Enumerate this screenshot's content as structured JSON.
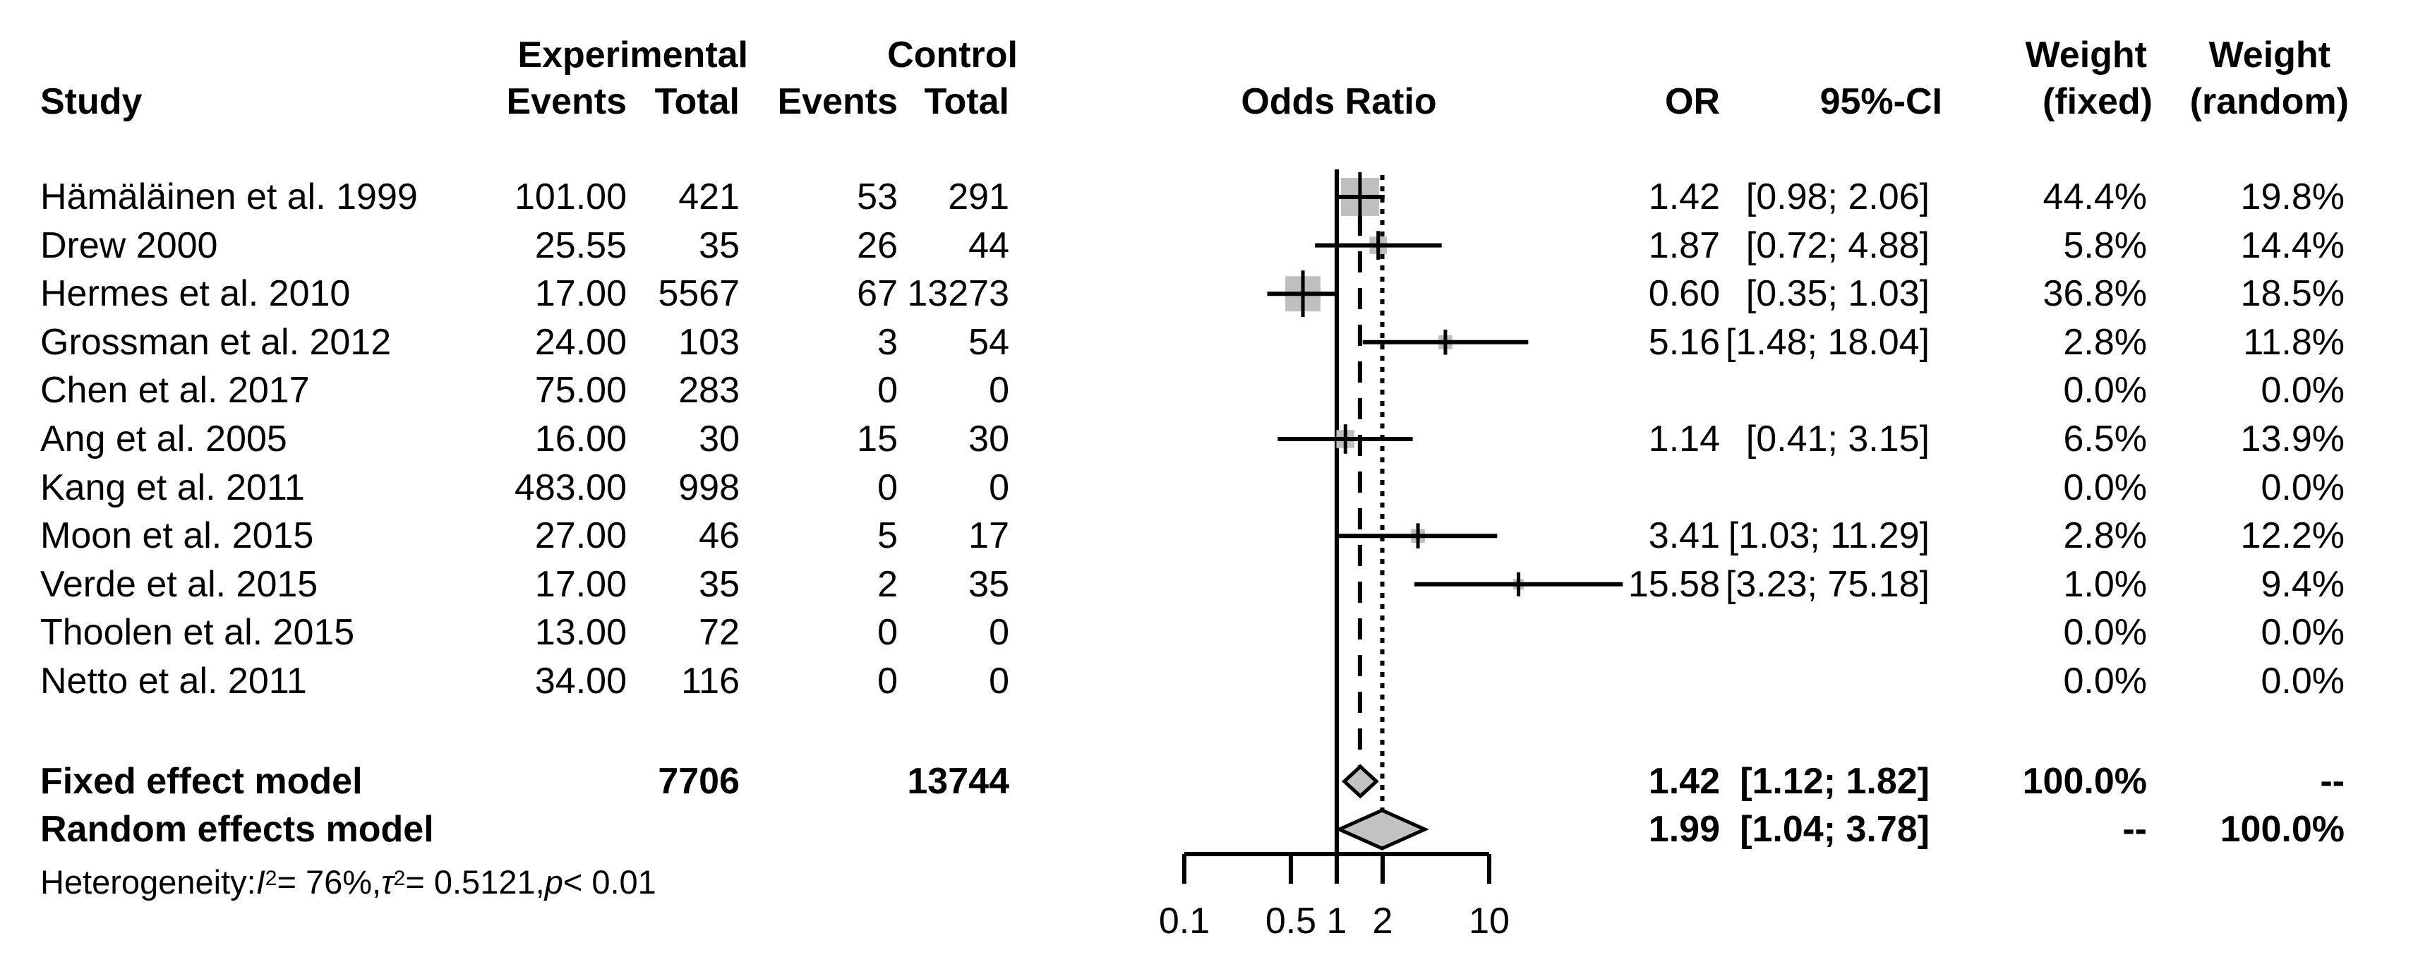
{
  "header": {
    "group1_label": "Experimental",
    "group2_label": "Control",
    "study_label": "Study",
    "events_label": "Events",
    "total_label": "Total",
    "plot_label": "Odds Ratio",
    "or_label": "OR",
    "ci_label": "95%-CI",
    "weight_label": "Weight",
    "weight_fixed_label": "(fixed)",
    "weight_random_label": "(random)"
  },
  "summary": {
    "fixed_label": "Fixed effect model",
    "random_label": "Random effects model",
    "fixed_total_experimental": "7706",
    "fixed_total_control": "13744",
    "fixed_or": "1.42",
    "fixed_ci": "[1.12; 1.82]",
    "fixed_weight_fixed": "100.0%",
    "fixed_weight_random": "--",
    "random_or": "1.99",
    "random_ci": "[1.04; 3.78]",
    "random_weight_fixed": "--",
    "random_weight_random": "100.0%"
  },
  "heterogeneity_segments": [
    {
      "t": "Heterogeneity: "
    },
    {
      "t": "I",
      "style": "i"
    },
    {
      "t": "2",
      "style": "sup"
    },
    {
      "t": " = 76%, "
    },
    {
      "t": "τ",
      "style": "i"
    },
    {
      "t": "2",
      "style": "sup"
    },
    {
      "t": " = 0.5121, "
    },
    {
      "t": "p",
      "style": "i"
    },
    {
      "t": " < 0.01"
    }
  ],
  "colors": {
    "text": "#000000",
    "line": "#000000",
    "square_fill": "#bfbfbf",
    "diamond_fill": "#c2c2c2",
    "diamond_border": "#000000"
  },
  "chart_data": {
    "type": "scatter",
    "subtype": "forest_plot",
    "title": "",
    "xlabel": "",
    "x_scale": "log10",
    "x_ticks": [
      "0.1",
      "0.5",
      "1",
      "2",
      "10"
    ],
    "x_tick_values": [
      0.1,
      0.5,
      1,
      2,
      10
    ],
    "x_range": [
      0.1,
      10
    ],
    "reference_line": 1,
    "fixed_effect_line": 1.42,
    "random_effects_line": 1.99,
    "studies": [
      {
        "name": "Hämäläinen et al. 1999",
        "exp_events": "101.00",
        "exp_total": "421",
        "ctl_events": "53",
        "ctl_total": "291",
        "or": 1.42,
        "lo": 0.98,
        "hi": 2.06,
        "or_text": "1.42",
        "ci_text": "[0.98; 2.06]",
        "w_fixed": "44.4%",
        "w_random": "19.8%",
        "w_fixed_val": 44.4,
        "w_random_val": 19.8
      },
      {
        "name": "Drew 2000",
        "exp_events": "25.55",
        "exp_total": "35",
        "ctl_events": "26",
        "ctl_total": "44",
        "or": 1.87,
        "lo": 0.72,
        "hi": 4.88,
        "or_text": "1.87",
        "ci_text": "[0.72; 4.88]",
        "w_fixed": "5.8%",
        "w_random": "14.4%",
        "w_fixed_val": 5.8,
        "w_random_val": 14.4
      },
      {
        "name": "Hermes et al. 2010",
        "exp_events": "17.00",
        "exp_total": "5567",
        "ctl_events": "67",
        "ctl_total": "13273",
        "or": 0.6,
        "lo": 0.35,
        "hi": 1.03,
        "or_text": "0.60",
        "ci_text": "[0.35; 1.03]",
        "w_fixed": "36.8%",
        "w_random": "18.5%",
        "w_fixed_val": 36.8,
        "w_random_val": 18.5
      },
      {
        "name": "Grossman et al. 2012",
        "exp_events": "24.00",
        "exp_total": "103",
        "ctl_events": "3",
        "ctl_total": "54",
        "or": 5.16,
        "lo": 1.48,
        "hi": 18.04,
        "or_text": "5.16",
        "ci_text": "[1.48; 18.04]",
        "w_fixed": "2.8%",
        "w_random": "11.8%",
        "w_fixed_val": 2.8,
        "w_random_val": 11.8
      },
      {
        "name": "Chen et al. 2017",
        "exp_events": "75.00",
        "exp_total": "283",
        "ctl_events": "0",
        "ctl_total": "0",
        "or": null,
        "lo": null,
        "hi": null,
        "or_text": "",
        "ci_text": "",
        "w_fixed": "0.0%",
        "w_random": "0.0%",
        "w_fixed_val": 0,
        "w_random_val": 0
      },
      {
        "name": "Ang et al. 2005",
        "exp_events": "16.00",
        "exp_total": "30",
        "ctl_events": "15",
        "ctl_total": "30",
        "or": 1.14,
        "lo": 0.41,
        "hi": 3.15,
        "or_text": "1.14",
        "ci_text": "[0.41; 3.15]",
        "w_fixed": "6.5%",
        "w_random": "13.9%",
        "w_fixed_val": 6.5,
        "w_random_val": 13.9
      },
      {
        "name": "Kang et al. 2011",
        "exp_events": "483.00",
        "exp_total": "998",
        "ctl_events": "0",
        "ctl_total": "0",
        "or": null,
        "lo": null,
        "hi": null,
        "or_text": "",
        "ci_text": "",
        "w_fixed": "0.0%",
        "w_random": "0.0%",
        "w_fixed_val": 0,
        "w_random_val": 0
      },
      {
        "name": "Moon et al. 2015",
        "exp_events": "27.00",
        "exp_total": "46",
        "ctl_events": "5",
        "ctl_total": "17",
        "or": 3.41,
        "lo": 1.03,
        "hi": 11.29,
        "or_text": "3.41",
        "ci_text": "[1.03; 11.29]",
        "w_fixed": "2.8%",
        "w_random": "12.2%",
        "w_fixed_val": 2.8,
        "w_random_val": 12.2
      },
      {
        "name": "Verde et al. 2015",
        "exp_events": "17.00",
        "exp_total": "35",
        "ctl_events": "2",
        "ctl_total": "35",
        "or": 15.58,
        "lo": 3.23,
        "hi": 75.18,
        "or_text": "15.58",
        "ci_text": "[3.23; 75.18]",
        "w_fixed": "1.0%",
        "w_random": "9.4%",
        "w_fixed_val": 1.0,
        "w_random_val": 9.4
      },
      {
        "name": "Thoolen et al. 2015",
        "exp_events": "13.00",
        "exp_total": "72",
        "ctl_events": "0",
        "ctl_total": "0",
        "or": null,
        "lo": null,
        "hi": null,
        "or_text": "",
        "ci_text": "",
        "w_fixed": "0.0%",
        "w_random": "0.0%",
        "w_fixed_val": 0,
        "w_random_val": 0
      },
      {
        "name": "Netto et al. 2011",
        "exp_events": "34.00",
        "exp_total": "116",
        "ctl_events": "0",
        "ctl_total": "0",
        "or": null,
        "lo": null,
        "hi": null,
        "or_text": "",
        "ci_text": "",
        "w_fixed": "0.0%",
        "w_random": "0.0%",
        "w_fixed_val": 0,
        "w_random_val": 0
      }
    ],
    "fixed_diamond": {
      "or": 1.42,
      "lo": 1.12,
      "hi": 1.82
    },
    "random_diamond": {
      "or": 1.99,
      "lo": 1.04,
      "hi": 3.78
    },
    "legend_position": "none",
    "grid": false
  }
}
